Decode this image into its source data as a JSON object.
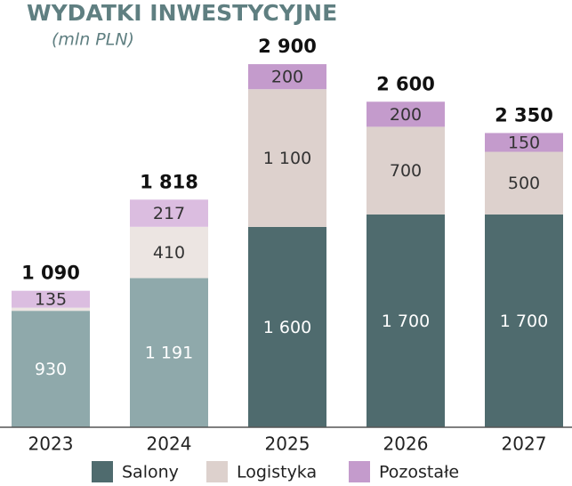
{
  "chart_data": {
    "type": "stacked_bar",
    "title": "WYDATKI INWESTYCYJNE",
    "subtitle": "(mln PLN)",
    "categories": [
      "2023",
      "2024",
      "2025",
      "2026",
      "2027"
    ],
    "series": [
      {
        "name": "Salony",
        "color": "#4f6b6e",
        "colors": [
          "#8fa9ab",
          "#8fa9ab",
          "#4f6b6e",
          "#4f6b6e",
          "#4f6b6e"
        ],
        "values": [
          930,
          1191,
          1600,
          1700,
          1700
        ],
        "value_labels": [
          "930",
          "1 191",
          "1 600",
          "1 700",
          "1 700"
        ]
      },
      {
        "name": "Logistyka",
        "color": "#ddd1cd",
        "colors": [
          "#ece5e2",
          "#ece5e2",
          "#ddd1cd",
          "#ddd1cd",
          "#ddd1cd"
        ],
        "values": [
          25,
          410,
          1100,
          700,
          500
        ],
        "value_labels": [
          null,
          "410",
          "1 100",
          "700",
          "500"
        ]
      },
      {
        "name": "Pozostałe",
        "color": "#c49bcc",
        "colors": [
          "#dbbde0",
          "#dbbde0",
          "#c49bcc",
          "#c49bcc",
          "#c49bcc"
        ],
        "values": [
          135,
          217,
          200,
          200,
          150
        ],
        "value_labels": [
          "135",
          "217",
          "200",
          "200",
          "150"
        ]
      }
    ],
    "totals": [
      1090,
      1818,
      2900,
      2600,
      2350
    ],
    "total_labels": [
      "1 090",
      "1 818",
      "2 900",
      "2 600",
      "2 350"
    ],
    "ylim": [
      0,
      3000
    ]
  }
}
